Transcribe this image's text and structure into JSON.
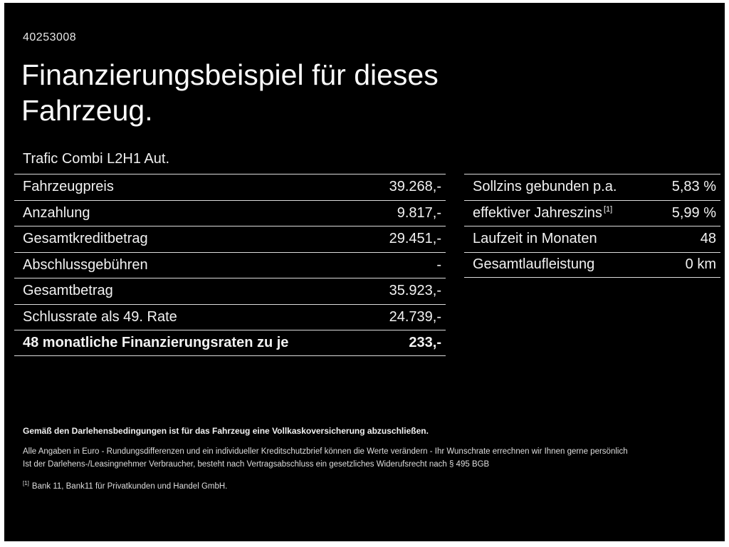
{
  "header": {
    "doc_id": "40253008",
    "title": "Finanzierungsbeispiel für dieses Fahrzeug.",
    "model": "Trafic Combi L2H1 Aut."
  },
  "left_table": {
    "rows": [
      {
        "label": "Fahrzeugpreis",
        "value": "39.268,-"
      },
      {
        "label": "Anzahlung",
        "value": "9.817,-"
      },
      {
        "label": "Gesamtkreditbetrag",
        "value": "29.451,-"
      },
      {
        "label": "Abschlussgebühren",
        "value": "-"
      },
      {
        "label": "Gesamtbetrag",
        "value": "35.923,-"
      },
      {
        "label": "Schlussrate als 49. Rate",
        "value": "24.739,-"
      },
      {
        "label": "48 monatliche Finanzierungsraten zu je",
        "value": "233,-"
      }
    ]
  },
  "right_table": {
    "rows": [
      {
        "label": "Sollzins gebunden p.a.",
        "value": "5,83 %"
      },
      {
        "label": "effektiver Jahreszins",
        "sup": "[1]",
        "value": "5,99 %"
      },
      {
        "label": "Laufzeit in Monaten",
        "value": "48"
      },
      {
        "label": "Gesamtlaufleistung",
        "value": "0 km"
      }
    ]
  },
  "footer": {
    "line1": "Gemäß den Darlehensbedingungen ist für das Fahrzeug eine Vollkaskoversicherung abzuschließen.",
    "line2": "Alle Angaben in Euro - Rundungsdifferenzen und ein individueller Kreditschutzbrief können die Werte verändern - Ihr Wunschrate errechnen wir Ihnen gerne persönlich",
    "line3": "Ist der Darlehens-/Leasingnehmer Verbraucher, besteht nach Vertragsabschluss ein gesetzliches Widerufsrecht nach § 495 BGB",
    "footnote_marker": "[1]",
    "footnote_text": "Bank 11, Bank11 für Privatkunden und Handel GmbH."
  },
  "colors": {
    "background": "#000000",
    "frame": "#ffffff",
    "text": "#f2f2f2",
    "divider": "#dcdcdc"
  }
}
